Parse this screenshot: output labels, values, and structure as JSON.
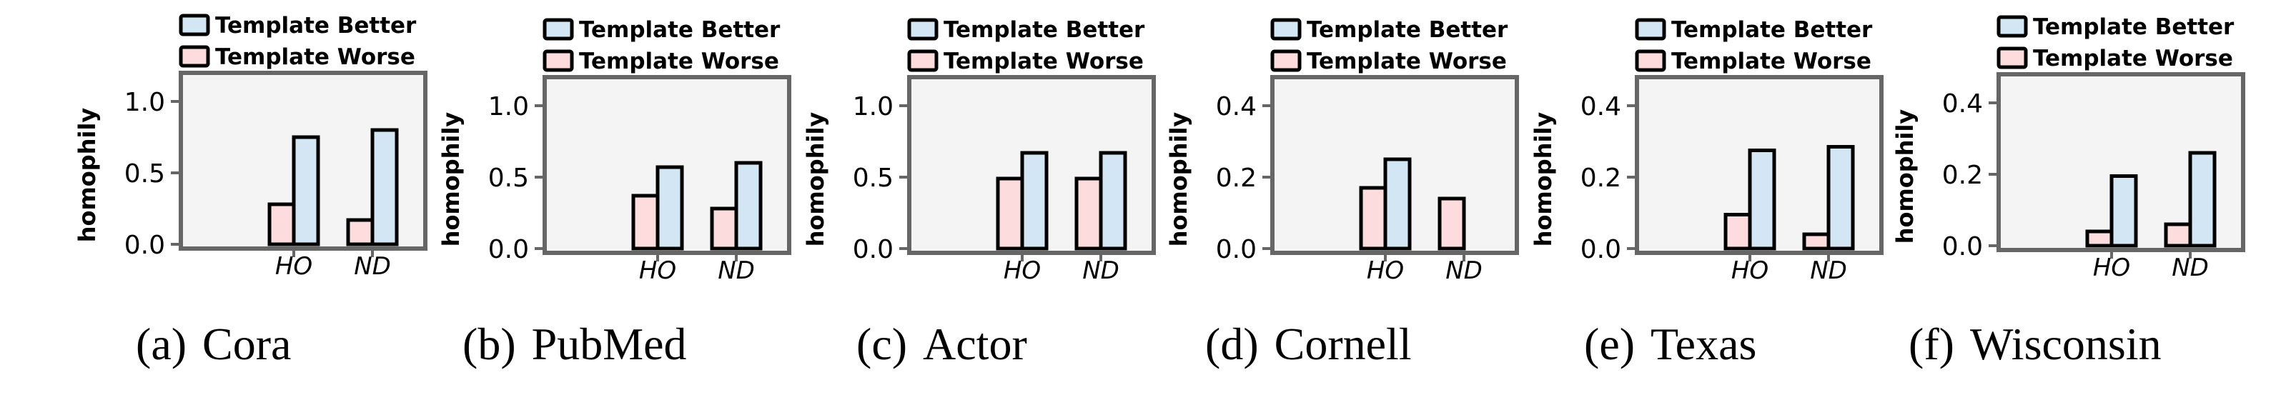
{
  "colors": {
    "template_better": "#d3e6f3",
    "template_worse": "#fcdcdd",
    "plot_bg": "#f4f4f4",
    "frame": "#666666",
    "bar_edge": "#000000"
  },
  "chart_data": [
    {
      "type": "bar",
      "panel_label": "(a)",
      "caption": "Cora",
      "ylabel": "homophily",
      "categories": [
        "HO",
        "ND"
      ],
      "ylim": [
        0,
        1.2
      ],
      "yticks": [
        "0.0",
        "0.5",
        "1.0"
      ],
      "ytick_values": [
        0.0,
        0.5,
        1.0
      ],
      "legend_position": "top",
      "series": [
        {
          "name": "Template Worse",
          "values": [
            0.28,
            0.17
          ]
        },
        {
          "name": "Template Better",
          "values": [
            0.75,
            0.8
          ]
        }
      ]
    },
    {
      "type": "bar",
      "panel_label": "(b)",
      "caption": "PubMed",
      "ylabel": "homophily",
      "categories": [
        "HO",
        "ND"
      ],
      "ylim": [
        0,
        1.2
      ],
      "yticks": [
        "0.0",
        "0.5",
        "1.0"
      ],
      "ytick_values": [
        0.0,
        0.5,
        1.0
      ],
      "legend_position": "top",
      "series": [
        {
          "name": "Template Worse",
          "values": [
            0.37,
            0.28
          ]
        },
        {
          "name": "Template Better",
          "values": [
            0.57,
            0.6
          ]
        }
      ]
    },
    {
      "type": "bar",
      "panel_label": "(c)",
      "caption": "Actor",
      "ylabel": "homophily",
      "categories": [
        "HO",
        "ND"
      ],
      "ylim": [
        0,
        1.2
      ],
      "yticks": [
        "0.0",
        "0.5",
        "1.0"
      ],
      "ytick_values": [
        0.0,
        0.5,
        1.0
      ],
      "legend_position": "top",
      "series": [
        {
          "name": "Template Worse",
          "values": [
            0.49,
            0.49
          ]
        },
        {
          "name": "Template Better",
          "values": [
            0.67,
            0.67
          ]
        }
      ]
    },
    {
      "type": "bar",
      "panel_label": "(d)",
      "caption": "Cornell",
      "ylabel": "homophily",
      "categories": [
        "HO",
        "ND"
      ],
      "ylim": [
        0,
        0.48
      ],
      "yticks": [
        "0.0",
        "0.2",
        "0.4"
      ],
      "ytick_values": [
        0.0,
        0.2,
        0.4
      ],
      "legend_position": "top",
      "series": [
        {
          "name": "Template Worse",
          "values": [
            0.17,
            0.14
          ]
        },
        {
          "name": "Template Better",
          "values": [
            0.25,
            0.0
          ]
        }
      ]
    },
    {
      "type": "bar",
      "panel_label": "(e)",
      "caption": "Texas",
      "ylabel": "homophily",
      "categories": [
        "HO",
        "ND"
      ],
      "ylim": [
        0,
        0.48
      ],
      "yticks": [
        "0.0",
        "0.2",
        "0.4"
      ],
      "ytick_values": [
        0.0,
        0.2,
        0.4
      ],
      "legend_position": "top",
      "series": [
        {
          "name": "Template Worse",
          "values": [
            0.095,
            0.04
          ]
        },
        {
          "name": "Template Better",
          "values": [
            0.275,
            0.285
          ]
        }
      ]
    },
    {
      "type": "bar",
      "panel_label": "(f)",
      "caption": "Wisconsin",
      "ylabel": "homophily",
      "categories": [
        "HO",
        "ND"
      ],
      "ylim": [
        0,
        0.48
      ],
      "yticks": [
        "0.0",
        "0.2",
        "0.4"
      ],
      "ytick_values": [
        0.0,
        0.2,
        0.4
      ],
      "legend_position": "top",
      "series": [
        {
          "name": "Template Worse",
          "values": [
            0.04,
            0.06
          ]
        },
        {
          "name": "Template Better",
          "values": [
            0.195,
            0.26
          ]
        }
      ]
    }
  ]
}
